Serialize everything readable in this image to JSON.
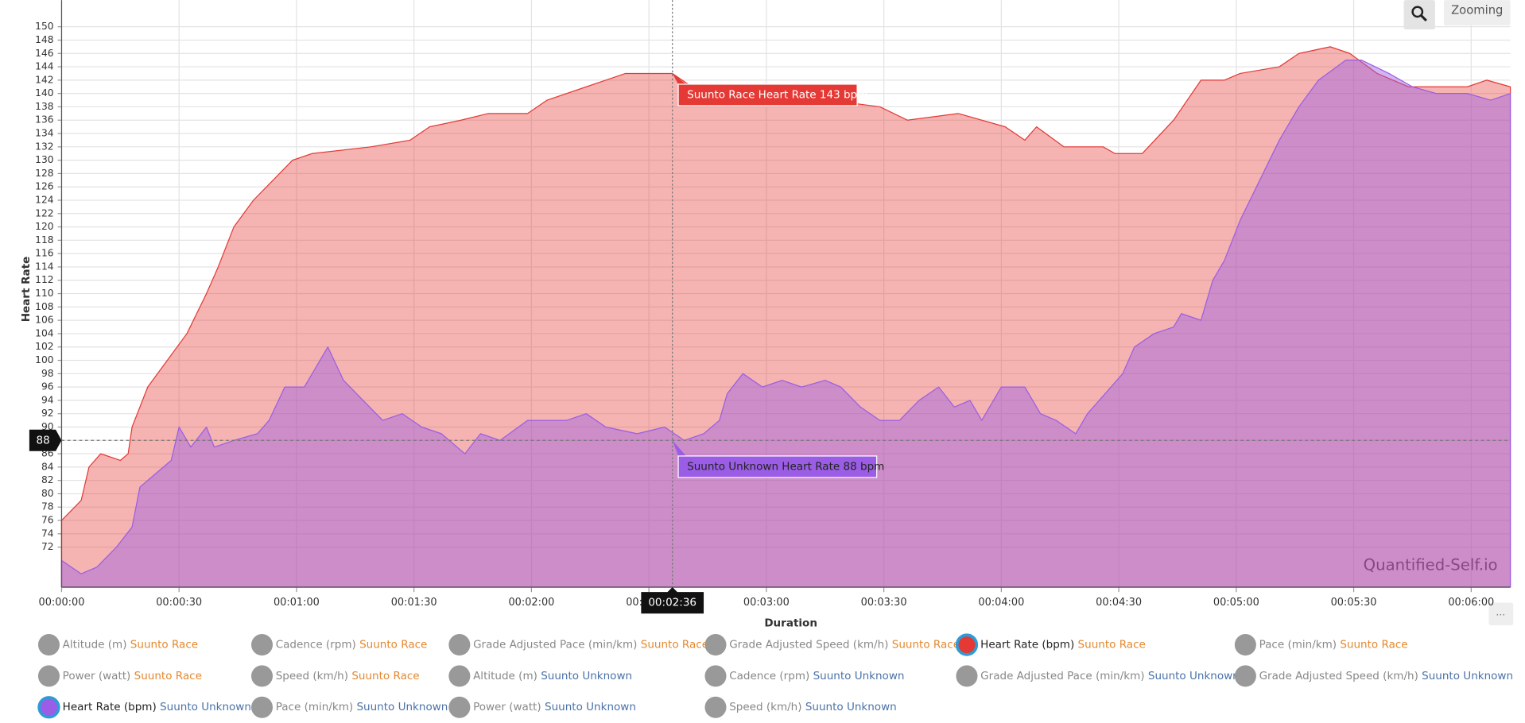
{
  "chart_data": {
    "type": "area",
    "ylabel": "Heart Rate",
    "xlabel": "Duration",
    "watermark": "Quantified-Self.io",
    "buttons": {
      "zoom": "Zooming",
      "more": "..."
    },
    "xlim": [
      0,
      370
    ],
    "ylim": [
      66,
      154
    ],
    "grid": true,
    "xticks": [
      {
        "value": 0,
        "label": "00:00:00"
      },
      {
        "value": 30,
        "label": "00:00:30"
      },
      {
        "value": 60,
        "label": "00:01:00"
      },
      {
        "value": 90,
        "label": "00:01:30"
      },
      {
        "value": 120,
        "label": "00:02:00"
      },
      {
        "value": 150,
        "label": "00:02:30"
      },
      {
        "value": 180,
        "label": "00:03:00"
      },
      {
        "value": 210,
        "label": "00:03:30"
      },
      {
        "value": 240,
        "label": "00:04:00"
      },
      {
        "value": 270,
        "label": "00:04:30"
      },
      {
        "value": 300,
        "label": "00:05:00"
      },
      {
        "value": 330,
        "label": "00:05:30"
      },
      {
        "value": 360,
        "label": "00:06:00"
      }
    ],
    "yticks": [
      72,
      74,
      76,
      78,
      80,
      82,
      84,
      86,
      88,
      90,
      92,
      94,
      96,
      98,
      100,
      102,
      104,
      106,
      108,
      110,
      112,
      114,
      116,
      118,
      120,
      122,
      124,
      126,
      128,
      130,
      132,
      134,
      136,
      138,
      140,
      142,
      144,
      146,
      148,
      150
    ],
    "series": [
      {
        "name": "Suunto Race",
        "color": "#e53935",
        "x": [
          0,
          5,
          7,
          10,
          15,
          17,
          18,
          20,
          22,
          27,
          32,
          37,
          40,
          44,
          49,
          54,
          59,
          64,
          79,
          89,
          94,
          102,
          109,
          119,
          124,
          134,
          144,
          156,
          161,
          174,
          184,
          196,
          209,
          216,
          229,
          241,
          246,
          249,
          256,
          266,
          269,
          276,
          284,
          291,
          297,
          301,
          311,
          316,
          324,
          329,
          336,
          344,
          359,
          364,
          370
        ],
        "values": [
          76,
          79,
          84,
          86,
          85,
          86,
          90,
          93,
          96,
          100,
          104,
          110,
          114,
          120,
          124,
          127,
          130,
          131,
          132,
          133,
          135,
          136,
          137,
          137,
          139,
          141,
          143,
          143,
          141,
          141,
          141,
          139,
          138,
          136,
          137,
          135,
          133,
          135,
          132,
          132,
          131,
          131,
          136,
          142,
          142,
          143,
          144,
          146,
          147,
          146,
          143,
          141,
          141,
          142,
          141
        ]
      },
      {
        "name": "Suunto Unknown",
        "color": "#9b5de5",
        "x": [
          0,
          5,
          9,
          14,
          18,
          20,
          24,
          28,
          30,
          33,
          37,
          39,
          44,
          50,
          53,
          57,
          62,
          64,
          68,
          72,
          77,
          82,
          87,
          92,
          97,
          103,
          107,
          112,
          119,
          129,
          134,
          139,
          147,
          154,
          159,
          164,
          168,
          170,
          174,
          179,
          184,
          189,
          195,
          199,
          204,
          209,
          214,
          219,
          224,
          228,
          232,
          235,
          240,
          246,
          250,
          254,
          259,
          262,
          268,
          271,
          274,
          279,
          284,
          286,
          291,
          294,
          297,
          301,
          306,
          311,
          316,
          321,
          328,
          332,
          339,
          345,
          351,
          359,
          365,
          370
        ],
        "values": [
          70,
          68,
          69,
          72,
          75,
          81,
          83,
          85,
          90,
          87,
          90,
          87,
          88,
          89,
          91,
          96,
          96,
          98,
          102,
          97,
          94,
          91,
          92,
          90,
          89,
          86,
          89,
          88,
          91,
          91,
          92,
          90,
          89,
          90,
          88,
          89,
          91,
          95,
          98,
          96,
          97,
          96,
          97,
          96,
          93,
          91,
          91,
          94,
          96,
          93,
          94,
          91,
          96,
          96,
          92,
          91,
          89,
          92,
          96,
          98,
          102,
          104,
          105,
          107,
          106,
          112,
          115,
          121,
          127,
          133,
          138,
          142,
          145,
          145,
          143,
          141,
          140,
          140,
          139,
          140
        ]
      }
    ],
    "crosshair": {
      "x": {
        "value": 156,
        "label": "00:02:36"
      },
      "y": 88
    },
    "tooltips": [
      "Suunto Race Heart Rate 143 bpm",
      "Suunto Unknown Heart Rate 88 bpm"
    ],
    "legend_items": [
      {
        "name": "Altitude (m)",
        "device": "Suunto Race"
      },
      {
        "name": "Cadence (rpm)",
        "device": "Suunto Race"
      },
      {
        "name": "Grade Adjusted Pace (min/km)",
        "device": "Suunto Race"
      },
      {
        "name": "Grade Adjusted Speed (km/h)",
        "device": "Suunto Race"
      },
      {
        "name": "Heart Rate (bpm)",
        "device": "Suunto Race",
        "active": true,
        "color": "#e53935"
      },
      {
        "name": "Pace (min/km)",
        "device": "Suunto Race"
      },
      {
        "name": "Power (watt)",
        "device": "Suunto Race"
      },
      {
        "name": "Speed (km/h)",
        "device": "Suunto Race"
      },
      {
        "name": "Altitude (m)",
        "device": "Suunto Unknown"
      },
      {
        "name": "Cadence (rpm)",
        "device": "Suunto Unknown"
      },
      {
        "name": "Grade Adjusted Pace (min/km)",
        "device": "Suunto Unknown"
      },
      {
        "name": "Grade Adjusted Speed (km/h)",
        "device": "Suunto Unknown"
      },
      {
        "name": "Heart Rate (bpm)",
        "device": "Suunto Unknown",
        "active": true,
        "color": "#9b5de5"
      },
      {
        "name": "Pace (min/km)",
        "device": "Suunto Unknown"
      },
      {
        "name": "Power (watt)",
        "device": "Suunto Unknown"
      },
      {
        "name": "Speed (km/h)",
        "device": "Suunto Unknown"
      }
    ]
  }
}
